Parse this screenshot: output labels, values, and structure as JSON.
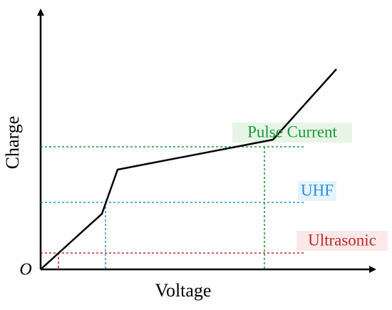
{
  "axes": {
    "y_label": "Charge",
    "x_label": "Voltage",
    "origin": "O"
  },
  "thresholds": [
    {
      "label": "Pulse Current"
    },
    {
      "label": "UHF"
    },
    {
      "label": "Ultrasonic"
    }
  ]
}
